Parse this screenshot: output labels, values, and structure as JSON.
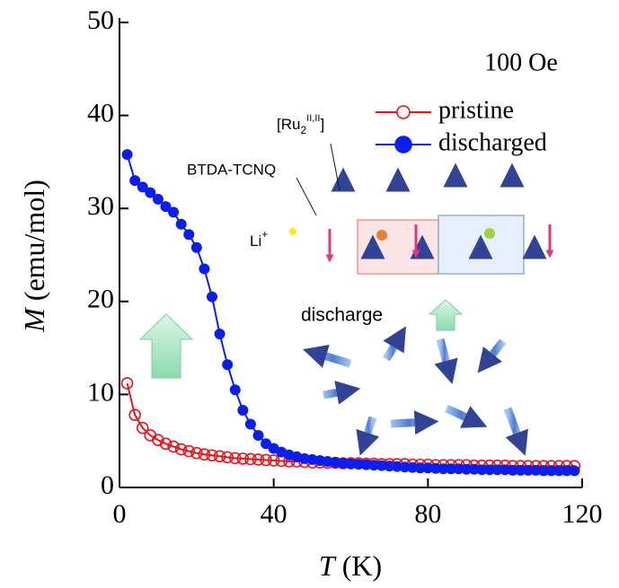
{
  "chart_data": {
    "type": "line",
    "x_label_var": "T",
    "x_label_unit": "(K)",
    "y_label_var": "M",
    "y_label_unit": "(emu/mol)",
    "xlim": [
      0,
      120
    ],
    "xticks": [
      0,
      40,
      80,
      120
    ],
    "ylim": [
      0,
      50
    ],
    "yticks": [
      0,
      10,
      20,
      30,
      40,
      50
    ],
    "x": [
      2,
      4,
      6,
      8,
      10,
      12,
      14,
      16,
      18,
      20,
      22,
      24,
      26,
      28,
      30,
      32,
      34,
      36,
      38,
      40,
      42,
      44,
      46,
      48,
      50,
      52,
      54,
      56,
      58,
      60,
      62,
      64,
      66,
      68,
      70,
      72,
      74,
      76,
      78,
      80,
      82,
      84,
      86,
      88,
      90,
      92,
      94,
      96,
      98,
      100,
      102,
      104,
      106,
      108,
      110,
      112,
      114,
      116,
      118
    ],
    "series": [
      {
        "name": "pristine",
        "color": "#e8141b",
        "marker": "open",
        "values": [
          11.2,
          7.8,
          6.4,
          5.6,
          5.1,
          4.7,
          4.4,
          4.1,
          3.9,
          3.7,
          3.55,
          3.45,
          3.35,
          3.25,
          3.15,
          3.1,
          3.05,
          3.0,
          2.95,
          2.9,
          2.85,
          2.8,
          2.8,
          2.75,
          2.7,
          2.7,
          2.65,
          2.65,
          2.6,
          2.6,
          2.6,
          2.55,
          2.55,
          2.5,
          2.5,
          2.5,
          2.5,
          2.45,
          2.45,
          2.45,
          2.4,
          2.4,
          2.4,
          2.4,
          2.4,
          2.35,
          2.35,
          2.35,
          2.35,
          2.35,
          2.3,
          2.3,
          2.3,
          2.3,
          2.3,
          2.3,
          2.3,
          2.3,
          2.3
        ]
      },
      {
        "name": "discharged",
        "color": "#0a1ef0",
        "marker": "filled",
        "values": [
          35.8,
          33.0,
          32.3,
          31.7,
          31.0,
          30.2,
          29.6,
          28.3,
          27.2,
          25.8,
          23.5,
          20.5,
          16.5,
          13.2,
          10.5,
          8.3,
          6.8,
          5.6,
          4.7,
          4.2,
          3.8,
          3.5,
          3.3,
          3.1,
          3.0,
          2.9,
          2.8,
          2.7,
          2.6,
          2.55,
          2.5,
          2.45,
          2.4,
          2.35,
          2.3,
          2.25,
          2.2,
          2.15,
          2.1,
          2.1,
          2.05,
          2.0,
          2.0,
          2.0,
          1.95,
          1.95,
          1.9,
          1.9,
          1.9,
          1.9,
          1.85,
          1.85,
          1.85,
          1.85,
          1.8,
          1.8,
          1.8,
          1.8,
          1.8
        ]
      }
    ],
    "annotations": {
      "field": "100 Oe",
      "ru": [
        "[Ru",
        "2",
        "II,II",
        "]"
      ],
      "btda": "BTDA-TCNQ",
      "li": [
        "Li",
        "+"
      ],
      "discharge": "discharge"
    }
  }
}
